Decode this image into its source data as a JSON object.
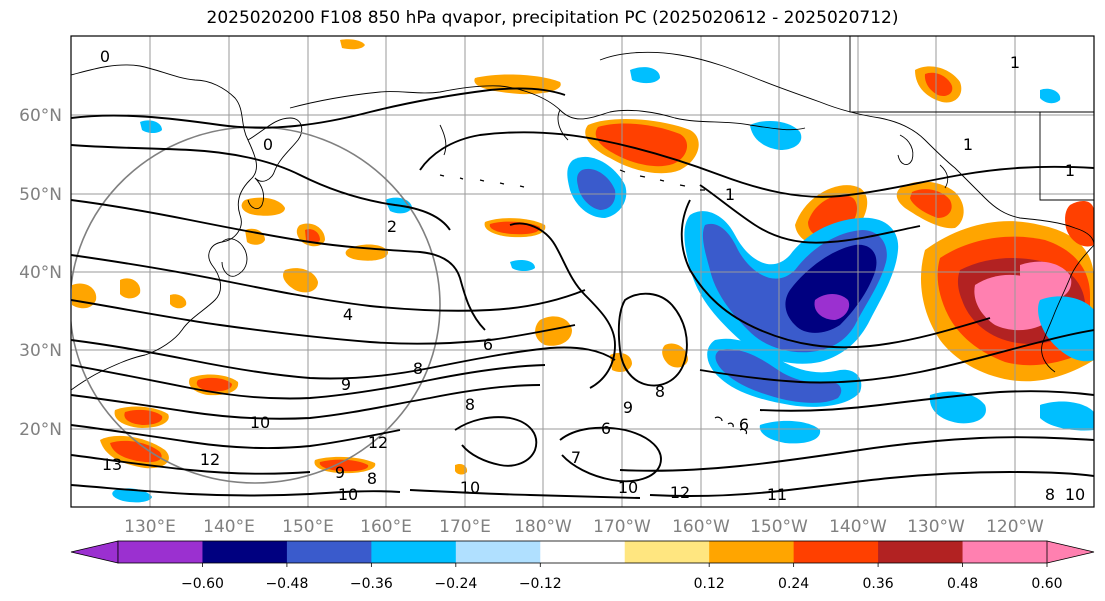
{
  "title": "2025020200 F108 850 hPa qvapor, precipitation PC (2025020612 - 2025020712)",
  "map": {
    "lat_labels": [
      "60°N",
      "50°N",
      "40°N",
      "30°N",
      "20°N"
    ],
    "lon_labels": [
      "130°E",
      "140°E",
      "150°E",
      "160°E",
      "170°E",
      "180°W",
      "170°W",
      "160°W",
      "150°W",
      "140°W",
      "130°W",
      "120°W"
    ],
    "contour_labels": [
      {
        "text": "0"
      },
      {
        "text": "0"
      },
      {
        "text": "2"
      },
      {
        "text": "4"
      },
      {
        "text": "6"
      },
      {
        "text": "8"
      },
      {
        "text": "9"
      },
      {
        "text": "10"
      },
      {
        "text": "12"
      },
      {
        "text": "13"
      },
      {
        "text": "12"
      },
      {
        "text": "9"
      },
      {
        "text": "8"
      },
      {
        "text": "10"
      },
      {
        "text": "10"
      },
      {
        "text": "8"
      },
      {
        "text": "9"
      },
      {
        "text": "7"
      },
      {
        "text": "6"
      },
      {
        "text": "10"
      },
      {
        "text": "12"
      },
      {
        "text": "11"
      },
      {
        "text": "8"
      },
      {
        "text": "6"
      },
      {
        "text": "8"
      },
      {
        "text": "1"
      },
      {
        "text": "1"
      },
      {
        "text": "1"
      },
      {
        "text": "1"
      },
      {
        "text": "10"
      }
    ],
    "range_ring": true,
    "gridlines": true
  },
  "colorbar": {
    "ticks": [
      "−0.60",
      "−0.48",
      "−0.36",
      "−0.24",
      "−0.12",
      "0.12",
      "0.24",
      "0.36",
      "0.48",
      "0.60"
    ],
    "colors": [
      "#9b30d0",
      "#000080",
      "#3a5bcc",
      "#00bfff",
      "#b0e0ff",
      "#ffffff",
      "#ffe680",
      "#ffa500",
      "#ff4000",
      "#b22222",
      "#ff80b0"
    ],
    "under_color": "#9b30d0",
    "over_color": "#ff80b0"
  }
}
